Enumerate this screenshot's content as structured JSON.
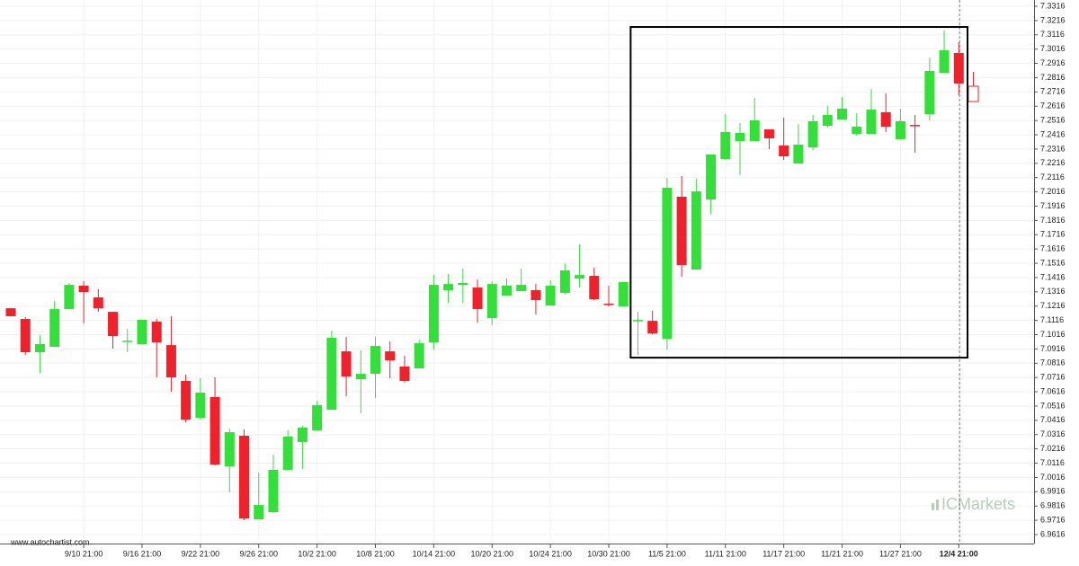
{
  "chart_data": {
    "type": "candlestick",
    "source": "www.autochartist.com",
    "watermark": "ICMarkets",
    "categories": [
      null,
      null,
      null,
      null,
      null,
      "9/10 21:00",
      null,
      null,
      null,
      "9/16 21:00",
      null,
      null,
      null,
      "9/22 21:00",
      null,
      null,
      null,
      "9/26 21:00",
      null,
      null,
      null,
      "10/2 21:00",
      null,
      null,
      null,
      "10/8 21:00",
      null,
      null,
      null,
      "10/14 21:00",
      null,
      null,
      null,
      "10/20 21:00",
      null,
      null,
      null,
      "10/24 21:00",
      null,
      null,
      null,
      "10/30 21:00",
      null,
      null,
      null,
      "11/5 21:00",
      null,
      null,
      null,
      "11/11 21:00",
      null,
      null,
      null,
      "11/17 21:00",
      null,
      null,
      null,
      "11/21 21:00",
      null,
      null,
      null,
      "11/27 21:00",
      null,
      null,
      null,
      "12/4 21:00",
      null
    ],
    "open": [
      7.1201,
      7.1126,
      7.0893,
      7.0931,
      7.1195,
      7.1359,
      7.1277,
      7.1176,
      7.0968,
      7.095,
      7.1107,
      7.0943,
      7.0692,
      7.0434,
      7.0579,
      7.0094,
      7.0308,
      6.9723,
      6.9773,
      7.0069,
      7.0264,
      7.0346,
      7.049,
      7.0899,
      7.0704,
      7.0742,
      7.0899,
      7.0793,
      7.078,
      7.0962,
      7.1327,
      7.1365,
      7.1346,
      7.1132,
      7.129,
      7.1321,
      7.1328,
      7.122,
      7.1309,
      7.1409,
      7.1428,
      7.1233,
      7.1214,
      7.1113,
      7.1113,
      7.0987,
      7.1982,
      7.1472,
      7.1963,
      7.2246,
      7.2372,
      7.2372,
      7.2454,
      7.2341,
      7.2215,
      7.2328,
      7.2479,
      7.2523,
      7.2422,
      7.2422,
      7.2574,
      7.2385,
      7.2485,
      7.2561,
      7.285,
      7.2989,
      7.2756
    ],
    "high": [
      7.1201,
      7.1139,
      7.1013,
      7.1252,
      7.1378,
      7.139,
      7.1334,
      7.1176,
      7.1057,
      7.112,
      7.1126,
      7.1145,
      7.0736,
      7.0711,
      7.0717,
      7.0358,
      7.0352,
      7.005,
      7.0176,
      7.0346,
      7.0377,
      7.0553,
      7.1044,
      7.1,
      7.0906,
      7.1,
      7.0969,
      7.0868,
      7.0981,
      7.1434,
      7.1441,
      7.1479,
      7.1403,
      7.139,
      7.1409,
      7.1479,
      7.1371,
      7.1397,
      7.1516,
      7.1648,
      7.1485,
      7.1359,
      7.1384,
      7.1176,
      7.1183,
      7.2114,
      7.2127,
      7.2108,
      7.2278,
      7.2561,
      7.2498,
      7.2674,
      7.2454,
      7.2536,
      7.2492,
      7.2555,
      7.2618,
      7.268,
      7.2567,
      7.2737,
      7.2706,
      7.2599,
      7.2555,
      7.2957,
      7.3146,
      7.3064,
      7.2857
    ],
    "low": [
      7.1145,
      7.0874,
      7.0749,
      7.0931,
      7.1195,
      7.1094,
      7.1176,
      7.0918,
      7.0893,
      7.095,
      7.0717,
      7.0616,
      7.0402,
      7.0421,
      7.01,
      6.9911,
      6.9716,
      6.9723,
      6.9767,
      7.0069,
      7.0075,
      7.0346,
      7.049,
      7.0585,
      7.0465,
      7.0572,
      7.0711,
      7.0679,
      7.078,
      7.0912,
      7.1239,
      7.1239,
      7.1101,
      7.1082,
      7.129,
      7.1321,
      7.1157,
      7.122,
      7.1296,
      7.1346,
      7.1258,
      7.1214,
      7.1214,
      7.0874,
      7.1019,
      7.0912,
      7.1422,
      7.1472,
      7.1862,
      7.2246,
      7.2133,
      7.2372,
      7.2315,
      7.224,
      7.2215,
      7.2309,
      7.2466,
      7.2523,
      7.241,
      7.2422,
      7.2435,
      7.2385,
      7.229,
      7.2517,
      7.285,
      7.2693,
      7.2649
    ],
    "close": [
      7.1145,
      7.0893,
      7.095,
      7.1195,
      7.1365,
      7.1315,
      7.1201,
      7.1006,
      7.0974,
      7.112,
      7.0962,
      7.0717,
      7.0421,
      7.061,
      7.0106,
      7.0333,
      6.9729,
      6.9823,
      7.0069,
      7.0302,
      7.0365,
      7.0522,
      7.0994,
      7.0723,
      7.0742,
      7.0937,
      7.0836,
      7.0692,
      7.0956,
      7.1365,
      7.1371,
      7.1378,
      7.1195,
      7.1371,
      7.1359,
      7.1365,
      7.1258,
      7.1359,
      7.1466,
      7.1434,
      7.1264,
      7.1227,
      7.1384,
      7.1119,
      7.1025,
      7.2045,
      7.1504,
      7.202,
      7.2278,
      7.2435,
      7.2429,
      7.2517,
      7.2391,
      7.2265,
      7.2347,
      7.2511,
      7.2555,
      7.2599,
      7.2473,
      7.2592,
      7.2473,
      7.2511,
      7.2479,
      7.2863,
      7.3008,
      7.2775,
      7.2649
    ],
    "up_color": "#33e03a",
    "down_color": "#f0212a",
    "pattern": {
      "top": 7.3171,
      "bottom": 7.0855,
      "x0": 42.5,
      "x1": 65.6
    },
    "ylim": [
      6.9616,
      7.3316
    ],
    "yticks": [
      6.9616,
      6.9716,
      6.9816,
      6.9916,
      7.0016,
      7.0116,
      7.0216,
      7.0316,
      7.0416,
      7.0516,
      7.0616,
      7.0716,
      7.0816,
      7.0916,
      7.1016,
      7.1116,
      7.1216,
      7.1316,
      7.1416,
      7.1516,
      7.1616,
      7.1716,
      7.1816,
      7.1916,
      7.2016,
      7.2116,
      7.2216,
      7.2316,
      7.2416,
      7.2516,
      7.2616,
      7.2716,
      7.2816,
      7.2916,
      7.3016,
      7.3116,
      7.3216,
      7.3316
    ],
    "grid": true
  }
}
